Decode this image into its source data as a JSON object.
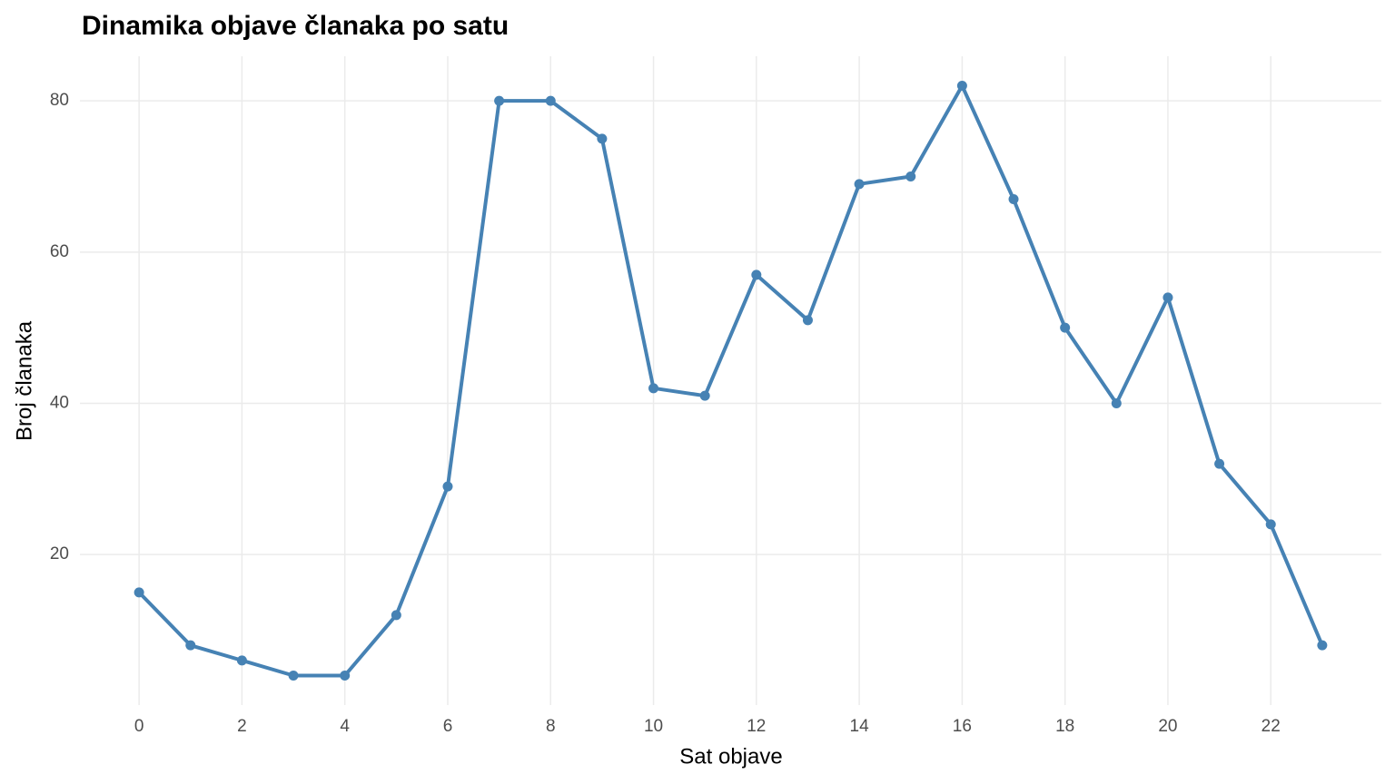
{
  "chart_data": {
    "type": "line",
    "title": "Dinamika objave članaka po satu",
    "x_label": "Sat objave",
    "y_label": "Broj članaka",
    "x": [
      0,
      1,
      2,
      3,
      4,
      5,
      6,
      7,
      8,
      9,
      10,
      11,
      12,
      13,
      14,
      15,
      16,
      17,
      18,
      19,
      20,
      21,
      22,
      23
    ],
    "values": [
      15,
      8,
      6,
      4,
      4,
      12,
      29,
      80,
      80,
      75,
      42,
      41,
      57,
      51,
      69,
      70,
      82,
      67,
      50,
      40,
      54,
      32,
      24,
      8
    ],
    "color": "#4682b4",
    "xlim": [
      -1.15,
      24.15
    ],
    "xticks": [
      0,
      2,
      4,
      6,
      8,
      10,
      12,
      14,
      16,
      18,
      20,
      22
    ],
    "ylim": [
      0.1,
      85.9
    ],
    "yticks": [
      20,
      40,
      60,
      80
    ],
    "grid": true
  }
}
